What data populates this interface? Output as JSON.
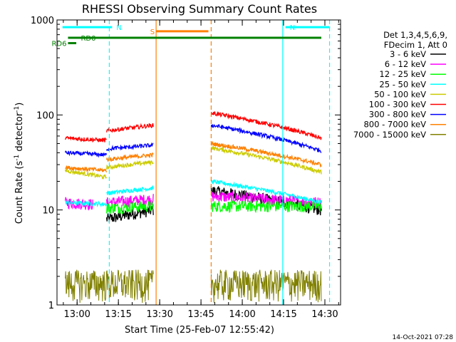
{
  "chart_data": {
    "type": "line",
    "title": "RHESSI Observing Summary Count Rates",
    "xlabel": "Start Time (25-Feb-07 12:55:42)",
    "ylabel": "Count Rate (s",
    "ylabel_sup": "-1",
    "ylabel_rest": " detector",
    "ylabel_close": ")",
    "y_scale": "log",
    "xlim_min": [
      -3,
      100
    ],
    "ylim": [
      1,
      1000
    ],
    "y_ticks": [
      {
        "v": 1,
        "label": "1"
      },
      {
        "v": 10,
        "label": "10"
      },
      {
        "v": 100,
        "label": "100"
      },
      {
        "v": 1000,
        "label": "1000"
      }
    ],
    "x_ticks": [
      {
        "v": 4.3,
        "label": "13:00"
      },
      {
        "v": 19.3,
        "label": "13:15"
      },
      {
        "v": 34.3,
        "label": "13:30"
      },
      {
        "v": 49.3,
        "label": "13:45"
      },
      {
        "v": 64.3,
        "label": "14:00"
      },
      {
        "v": 79.3,
        "label": "14:15"
      },
      {
        "v": 94.3,
        "label": "14:30"
      }
    ],
    "legend_title": [
      "Det 1,3,4,5,6,9,",
      "FDecim 1, Att 0"
    ],
    "legend_placement": "right",
    "footer": "14-Oct-2021 07:28",
    "gaps": [
      [
        32,
        53
      ],
      [
        79,
        80
      ]
    ],
    "series": [
      {
        "name": "3 - 6 keV",
        "color": "#000000",
        "segments": [
          {
            "x0": 15,
            "x1": 32,
            "y0": 8,
            "y1": 10
          },
          {
            "x0": 53,
            "x1": 93,
            "y0": 16,
            "y1": 10
          }
        ]
      },
      {
        "name": "6 - 12 keV",
        "color": "#ff00ff",
        "segments": [
          {
            "x0": 0,
            "x1": 10,
            "y0": 12,
            "y1": 11.5
          },
          {
            "x0": 15,
            "x1": 32,
            "y0": 12,
            "y1": 13
          },
          {
            "x0": 53,
            "x1": 93,
            "y0": 14,
            "y1": 12
          }
        ]
      },
      {
        "name": "12 - 25 keV",
        "color": "#00ff00",
        "segments": [
          {
            "x0": 15,
            "x1": 32,
            "y0": 10.5,
            "y1": 11
          },
          {
            "x0": 53,
            "x1": 93,
            "y0": 11,
            "y1": 11
          }
        ]
      },
      {
        "name": "25 - 50 keV",
        "color": "#00ffff",
        "segments": [
          {
            "x0": 0,
            "x1": 15,
            "y0": 12,
            "y1": 11.5
          },
          {
            "x0": 15,
            "x1": 32,
            "y0": 15,
            "y1": 17
          },
          {
            "x0": 53,
            "x1": 93,
            "y0": 20,
            "y1": 12
          }
        ]
      },
      {
        "name": "50 - 100 keV",
        "color": "#cccc00",
        "segments": [
          {
            "x0": 0,
            "x1": 15,
            "y0": 26,
            "y1": 22
          },
          {
            "x0": 15,
            "x1": 32,
            "y0": 28,
            "y1": 32
          },
          {
            "x0": 53,
            "x1": 93,
            "y0": 45,
            "y1": 25
          }
        ]
      },
      {
        "name": "100 - 300 keV",
        "color": "#ff0000",
        "segments": [
          {
            "x0": 0,
            "x1": 15,
            "y0": 57,
            "y1": 54
          },
          {
            "x0": 15,
            "x1": 32,
            "y0": 68,
            "y1": 78
          },
          {
            "x0": 53,
            "x1": 93,
            "y0": 105,
            "y1": 57
          }
        ]
      },
      {
        "name": "300 - 800 keV",
        "color": "#0000ff",
        "segments": [
          {
            "x0": 0,
            "x1": 15,
            "y0": 40,
            "y1": 38
          },
          {
            "x0": 15,
            "x1": 32,
            "y0": 44,
            "y1": 48
          },
          {
            "x0": 53,
            "x1": 93,
            "y0": 78,
            "y1": 42
          }
        ]
      },
      {
        "name": "800 - 7000 keV",
        "color": "#ff8000",
        "segments": [
          {
            "x0": 0,
            "x1": 15,
            "y0": 28,
            "y1": 26
          },
          {
            "x0": 15,
            "x1": 32,
            "y0": 34,
            "y1": 38
          },
          {
            "x0": 53,
            "x1": 93,
            "y0": 50,
            "y1": 30
          }
        ]
      },
      {
        "name": "7000 - 15000 keV",
        "color": "#808000",
        "segments": [
          {
            "x0": 0,
            "x1": 32,
            "y0": 1.5,
            "y1": 1.5
          },
          {
            "x0": 53,
            "x1": 93,
            "y0": 1.5,
            "y1": 1.5
          }
        ]
      }
    ],
    "flags": [
      {
        "label": "N",
        "color": "#00ffff",
        "x0": -1,
        "x1": 17,
        "y": 840
      },
      {
        "label": "N",
        "color": "#00ffff",
        "x0": 80,
        "x1": 96,
        "y": 840
      },
      {
        "label": "S",
        "color": "#ff8000",
        "x0": 33,
        "x1": 52,
        "y": 760
      },
      {
        "label": "RD0",
        "color": "#008000",
        "x0": 1,
        "x1": 93,
        "y": 650
      },
      {
        "label": "RD6",
        "color": "#008000",
        "x0": 1,
        "x1": 4,
        "y": 570
      }
    ],
    "vlines": [
      {
        "x": 16,
        "color": "#00ffff",
        "style": "dash"
      },
      {
        "x": 33,
        "color": "#ff8000",
        "style": "solid"
      },
      {
        "x": 53,
        "color": "#ff8000",
        "style": "dash"
      },
      {
        "x": 79,
        "color": "#00ffff",
        "style": "solid"
      },
      {
        "x": 96,
        "color": "#00ffff",
        "style": "dash"
      }
    ]
  }
}
